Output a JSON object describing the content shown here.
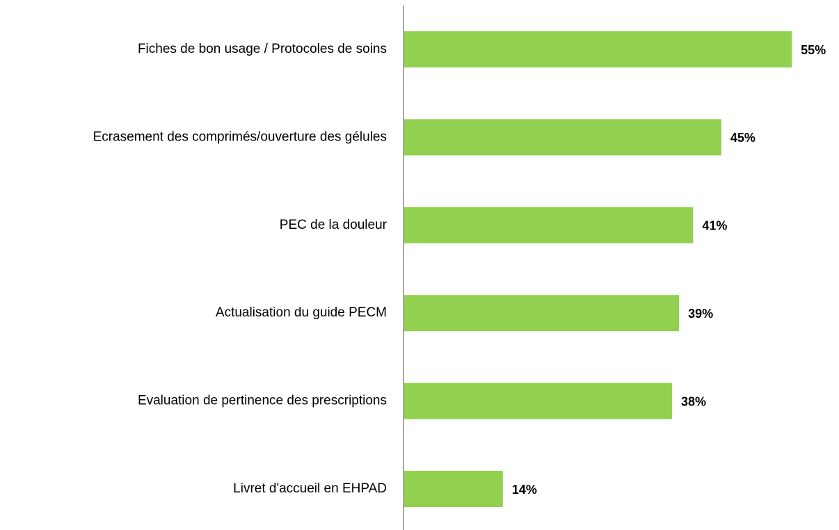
{
  "chart_data": {
    "type": "barh",
    "categories": [
      "Fiches de bon usage / Protocoles de soins",
      "Ecrasement des comprimés/ouverture des gélules",
      "PEC de la douleur",
      "Actualisation du guide PECM",
      "Evaluation de pertinence des prescriptions",
      "Livret d'accueil en EHPAD"
    ],
    "values": [
      55,
      45,
      41,
      39,
      38,
      14
    ],
    "value_labels": [
      "55%",
      "45%",
      "41%",
      "39%",
      "38%",
      "14%"
    ],
    "color": "#92d050"
  }
}
